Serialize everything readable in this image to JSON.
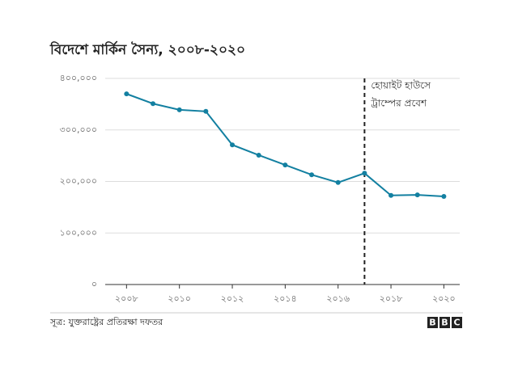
{
  "chart_data": {
    "type": "line",
    "title": "বিদেশে মার্কিন সৈন্য, ২০০৮-২০২০",
    "x": [
      2008,
      2009,
      2010,
      2011,
      2012,
      2013,
      2014,
      2015,
      2016,
      2017,
      2018,
      2019,
      2020
    ],
    "series": [
      {
        "name": "মার্কিন সৈন্য",
        "color": "#1380a1",
        "values": [
          370000,
          351000,
          339000,
          336000,
          271000,
          251000,
          232000,
          213000,
          198000,
          216000,
          173000,
          174000,
          171000
        ]
      }
    ],
    "xlim": [
      2007.5,
      2020.6
    ],
    "xticks": [
      {
        "value": 2008,
        "label": "২০০৮"
      },
      {
        "value": 2010,
        "label": "২০১০"
      },
      {
        "value": 2012,
        "label": "২০১২"
      },
      {
        "value": 2014,
        "label": "২০১৪"
      },
      {
        "value": 2016,
        "label": "২০১৬"
      },
      {
        "value": 2018,
        "label": "২০১৮"
      },
      {
        "value": 2020,
        "label": "২০২০"
      }
    ],
    "ylim": [
      0,
      400000
    ],
    "yticks": [
      {
        "value": 0,
        "label": "০"
      },
      {
        "value": 100000,
        "label": "১০০,০০০"
      },
      {
        "value": 200000,
        "label": "২০০,০০০"
      },
      {
        "value": 300000,
        "label": "৩০০,০০০"
      },
      {
        "value": 400000,
        "label": "৪০০,০০০"
      }
    ],
    "grid": true,
    "annotation": {
      "x": 2017,
      "lines": [
        "হোয়াইট হাউসে",
        "ট্রাম্পের প্রবেশ"
      ]
    },
    "source": "সূত্র: যুক্তরাষ্ট্রের প্রতিরক্ষা দফতর",
    "logo": [
      "B",
      "B",
      "C"
    ]
  }
}
